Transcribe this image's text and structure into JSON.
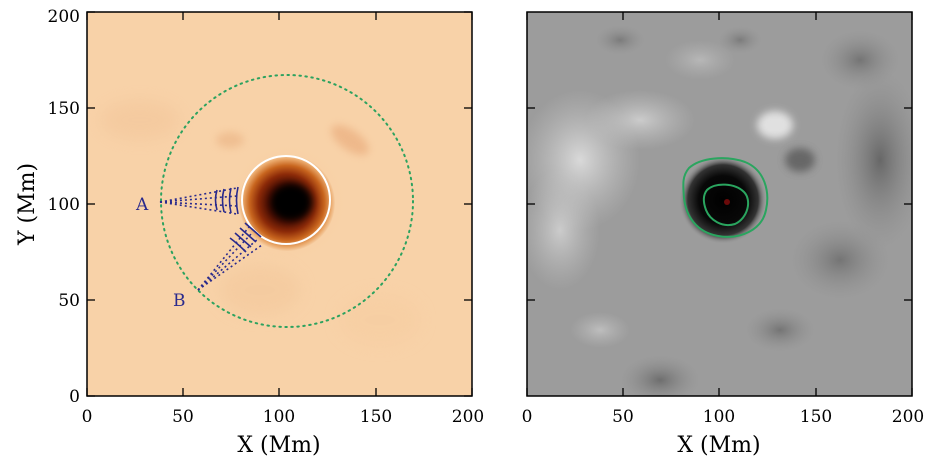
{
  "figure": {
    "left_panel": {
      "xlabel": "X (Mm)",
      "ylabel": "Y (Mm)",
      "x_ticks": [
        "0",
        "50",
        "100",
        "150",
        "200"
      ],
      "y_ticks": [
        "0",
        "50",
        "100",
        "150",
        "200"
      ],
      "colormap": "sunspot intensity (orange/brown)",
      "background_color": "#f8d2a8",
      "umbra_color": "#140200",
      "penumbra_color": "#b24210",
      "circle_color": "#ffffff",
      "dotted_circle_color": "#2ca25f",
      "arc_color": "#2a2a8c",
      "label_a": "A",
      "label_b": "B"
    },
    "right_panel": {
      "xlabel": "X (Mm)",
      "x_ticks": [
        "0",
        "50",
        "100",
        "150",
        "200"
      ],
      "colormap": "grayscale magnetogram",
      "background_color": "#9c9c9c",
      "contour_color": "#2aa55f"
    },
    "data_range": {
      "xlim": [
        0,
        200
      ],
      "ylim": [
        0,
        200
      ]
    }
  }
}
